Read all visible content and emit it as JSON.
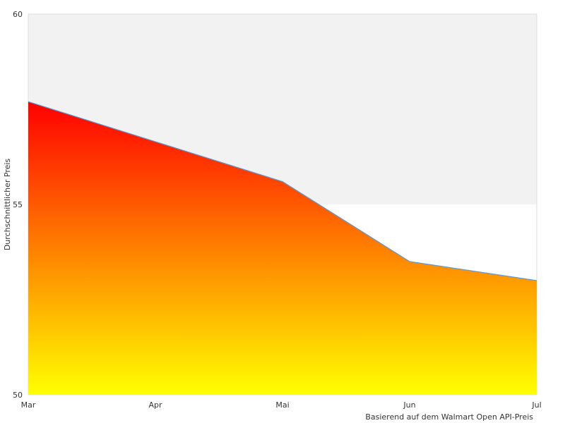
{
  "chart_data": {
    "type": "area",
    "categories": [
      "Mar",
      "Apr",
      "Mai",
      "Jun",
      "Jul"
    ],
    "series": [
      {
        "values": [
          57.7,
          56.65,
          55.6,
          53.5,
          53.0
        ]
      }
    ],
    "x": [
      "Mar",
      "Mai",
      "Jun",
      "Jul"
    ],
    "title": "",
    "xlabel": "Basierend auf dem Walmart Open API-Preis",
    "ylabel": "Durchschnittlicher Preis",
    "ylim": [
      50,
      60
    ],
    "yticks": [
      "50",
      "55",
      "60"
    ],
    "grid": true,
    "colors": {
      "fill_top": "#ff0000",
      "fill_bottom": "#ffff00",
      "line": "#5b9bd5",
      "band": "#f2f2f2",
      "axis": "#dddddd"
    }
  }
}
